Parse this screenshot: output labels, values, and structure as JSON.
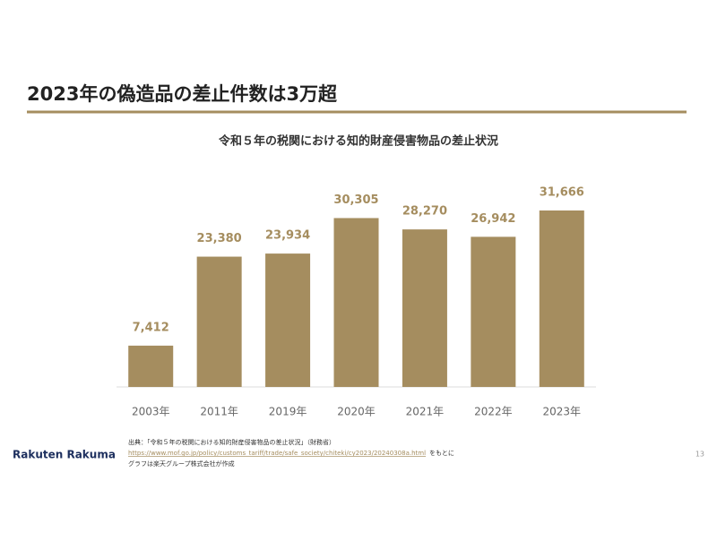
{
  "slide": {
    "title": "2023年の偽造品の差止件数は3万超",
    "source_line1": "出典：「令和５年の税関における知的財産侵害物品の差止状況」（財務省）",
    "source_url": "https://www.mof.go.jp/policy/customs_tariff/trade/safe_society/chiteki/cy2023/20240308a.html",
    "source_url_suffix": "をもとに",
    "source_line3": "グラフは楽天グループ株式会社が作成",
    "logo": "Rakuten Rakuma",
    "page_number": "13"
  },
  "chart_data": {
    "type": "bar",
    "title": "令和５年の税関における知的財産侵害物品の差止状況",
    "categories": [
      "2003年",
      "2011年",
      "2019年",
      "2020年",
      "2021年",
      "2022年",
      "2023年"
    ],
    "values": [
      7412,
      23380,
      23934,
      30305,
      28270,
      26942,
      31666
    ],
    "value_labels": [
      "7,412",
      "23,380",
      "23,934",
      "30,305",
      "28,270",
      "26,942",
      "31,666"
    ],
    "color": "#a58d5f"
  }
}
